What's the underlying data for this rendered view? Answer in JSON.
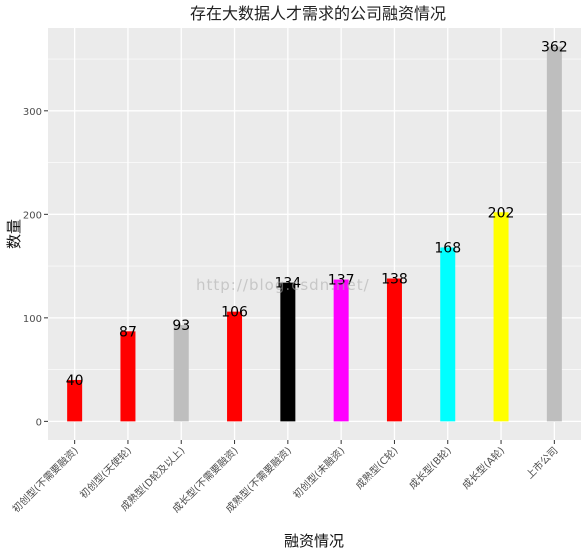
{
  "chart_data": {
    "type": "bar",
    "title": "存在大数据人才需求的公司融资情况",
    "xlabel": "融资情况",
    "ylabel": "数量",
    "categories": [
      "初创型(不需要融资)",
      "初创型(天使轮)",
      "成熟型(D轮及以上)",
      "成长型(不需要融资)",
      "成熟型(不需要融资)",
      "初创型(未融资)",
      "成熟型(C轮)",
      "成长型(B轮)",
      "成长型(A轮)",
      "上市公司"
    ],
    "values": [
      40,
      87,
      93,
      106,
      134,
      137,
      138,
      168,
      202,
      362
    ],
    "colors": [
      "#ff0000",
      "#ff0000",
      "#bebebe",
      "#ff0000",
      "#000000",
      "#ff00ff",
      "#ff0000",
      "#00ffff",
      "#ffff00",
      "#bebebe"
    ],
    "yticks": [
      0,
      100,
      200,
      300
    ],
    "ylim": [
      -18,
      380
    ],
    "grid": true,
    "background": "#ebebeb"
  },
  "watermark": "http://blog.csdn.net/"
}
